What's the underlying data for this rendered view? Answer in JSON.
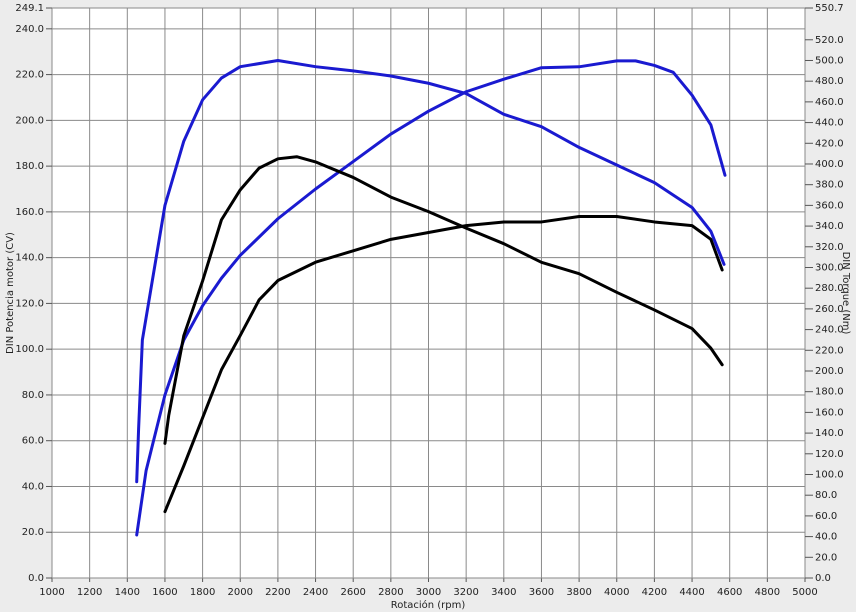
{
  "chart_data": {
    "type": "line",
    "x_label": "Rotación (rpm)",
    "y_label": "DIN Potencia motor (CV)",
    "y2_label": "DIN Torque (Nm)",
    "xlim": [
      1000,
      5000
    ],
    "xticks": [
      1000,
      1200,
      1400,
      1600,
      1800,
      2000,
      2200,
      2400,
      2600,
      2800,
      3000,
      3200,
      3400,
      3600,
      3800,
      4000,
      4200,
      4400,
      4600,
      4800,
      5000
    ],
    "ylim": [
      0,
      249.1
    ],
    "yticks": [
      {
        "value": 0,
        "label": "0.0"
      },
      {
        "value": 20,
        "label": "20.0"
      },
      {
        "value": 40,
        "label": "40.0"
      },
      {
        "value": 60,
        "label": "60.0"
      },
      {
        "value": 80,
        "label": "80.0"
      },
      {
        "value": 100,
        "label": "100.0"
      },
      {
        "value": 120,
        "label": "120.0"
      },
      {
        "value": 140,
        "label": "140.0"
      },
      {
        "value": 160,
        "label": "160.0"
      },
      {
        "value": 180,
        "label": "180.0"
      },
      {
        "value": 200,
        "label": "200.0"
      },
      {
        "value": 220,
        "label": "220.0"
      },
      {
        "value": 240,
        "label": "240.0"
      },
      249.1
    ],
    "y2lim": [
      0,
      550.7
    ],
    "y2ticks": [
      {
        "value": 0,
        "label": "0.0"
      },
      {
        "value": 20,
        "label": "20.0"
      },
      {
        "value": 40,
        "label": "40.0"
      },
      {
        "value": 60,
        "label": "60.0"
      },
      {
        "value": 80,
        "label": "80.0"
      },
      {
        "value": 100,
        "label": "100.0"
      },
      {
        "value": 120,
        "label": "120.0"
      },
      {
        "value": 140,
        "label": "140.0"
      },
      {
        "value": 160,
        "label": "160.0"
      },
      {
        "value": 180,
        "label": "180.0"
      },
      {
        "value": 200,
        "label": "200.0"
      },
      {
        "value": 220,
        "label": "220.0"
      },
      {
        "value": 240,
        "label": "240.0"
      },
      {
        "value": 260,
        "label": "260.0"
      },
      {
        "value": 280,
        "label": "280.0"
      },
      {
        "value": 300,
        "label": "300.0"
      },
      {
        "value": 320,
        "label": "320.0"
      },
      {
        "value": 340,
        "label": "340.0"
      },
      {
        "value": 360,
        "label": "360.0"
      },
      {
        "value": 380,
        "label": "380.0"
      },
      {
        "value": 400,
        "label": "400.0"
      },
      {
        "value": 420,
        "label": "420.0"
      },
      {
        "value": 440,
        "label": "440.0"
      },
      {
        "value": 460,
        "label": "460.0"
      },
      {
        "value": 480,
        "label": "480.0"
      },
      {
        "value": 500,
        "label": "500.0"
      },
      {
        "value": 520,
        "label": "520.0"
      },
      550.7
    ],
    "grid": true,
    "series": [
      {
        "color": "#1a1ad0",
        "axis": "y2",
        "x": [
          1450,
          1460,
          1480,
          1600,
          1700,
          1800,
          1900,
          2000,
          2200,
          2400,
          2600,
          2800,
          3000,
          3200,
          3400,
          3600,
          3800,
          4000,
          4200,
          4400,
          4500,
          4570
        ],
        "values": [
          93,
          144,
          230,
          360,
          422,
          462,
          483,
          494,
          500,
          494,
          490,
          485,
          478,
          468,
          448,
          436,
          416,
          399,
          382,
          358,
          335,
          303
        ]
      },
      {
        "color": "#1a1ad0",
        "x": [
          1450,
          1500,
          1600,
          1700,
          1800,
          1900,
          2000,
          2200,
          2400,
          2600,
          2800,
          3000,
          3200,
          3400,
          3600,
          3800,
          4000,
          4100,
          4200,
          4300,
          4400,
          4500,
          4575
        ],
        "values": [
          18.8,
          47,
          80,
          104,
          119,
          131,
          141,
          157,
          170,
          182,
          194,
          204,
          212.5,
          218,
          223,
          223.4,
          226,
          226,
          224,
          221,
          211,
          198,
          176
        ]
      },
      {
        "color": "#000000",
        "axis": "y2",
        "x": [
          1600,
          1620,
          1700,
          1800,
          1900,
          2000,
          2100,
          2200,
          2300,
          2400,
          2600,
          2800,
          3000,
          3200,
          3400,
          3600,
          3800,
          4000,
          4200,
          4400,
          4500,
          4560
        ],
        "values": [
          130,
          157,
          234,
          287,
          346,
          375,
          396,
          405,
          407,
          402,
          387,
          368,
          354,
          338,
          323,
          305,
          294,
          276,
          259,
          241,
          222,
          206
        ]
      },
      {
        "color": "#000000",
        "x": [
          1600,
          1700,
          1800,
          1900,
          2000,
          2100,
          2200,
          2400,
          2600,
          2800,
          3000,
          3200,
          3400,
          3600,
          3800,
          4000,
          4200,
          4400,
          4500,
          4560
        ],
        "values": [
          29,
          49,
          70,
          91,
          106,
          121.5,
          130,
          138,
          143,
          148,
          151,
          154,
          155.6,
          155.6,
          158,
          158,
          155.6,
          154,
          148,
          134.6
        ]
      }
    ]
  }
}
